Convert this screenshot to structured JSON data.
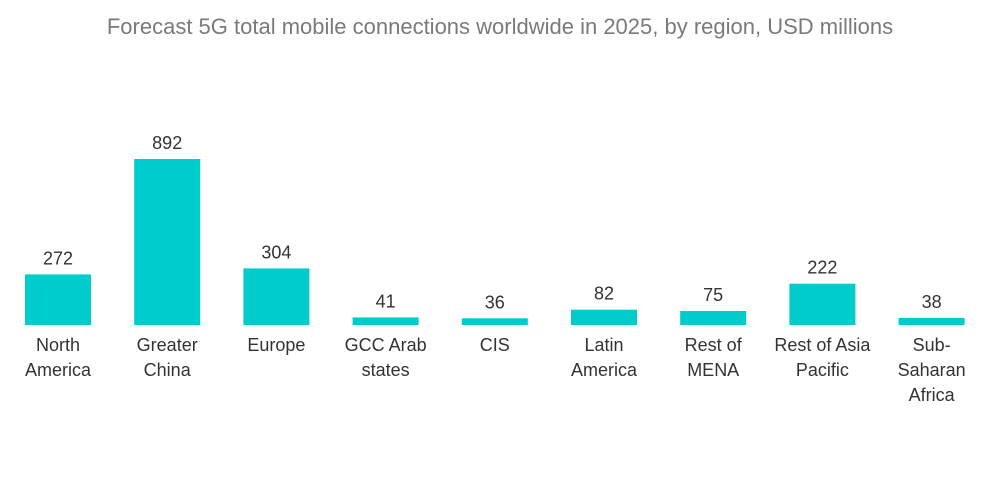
{
  "chart_data": {
    "type": "bar",
    "title": "Forecast 5G total mobile connections worldwide in 2025, by region, USD millions",
    "xlabel": "",
    "ylabel": "",
    "categories": [
      [
        "North",
        "America"
      ],
      [
        "Greater",
        "China"
      ],
      [
        "Europe"
      ],
      [
        "GCC Arab",
        "states"
      ],
      [
        "CIS"
      ],
      [
        "Latin",
        "America"
      ],
      [
        "Rest of",
        "MENA"
      ],
      [
        "Rest of Asia",
        "Pacific"
      ],
      [
        "Sub-",
        "Saharan",
        "Africa"
      ]
    ],
    "values": [
      272,
      892,
      304,
      41,
      36,
      82,
      75,
      222,
      38
    ],
    "ylim": [
      0,
      892
    ],
    "grid": false,
    "colors": {
      "bar": "#00cccc",
      "text": "#333333",
      "title": "#7a7a7a"
    }
  }
}
